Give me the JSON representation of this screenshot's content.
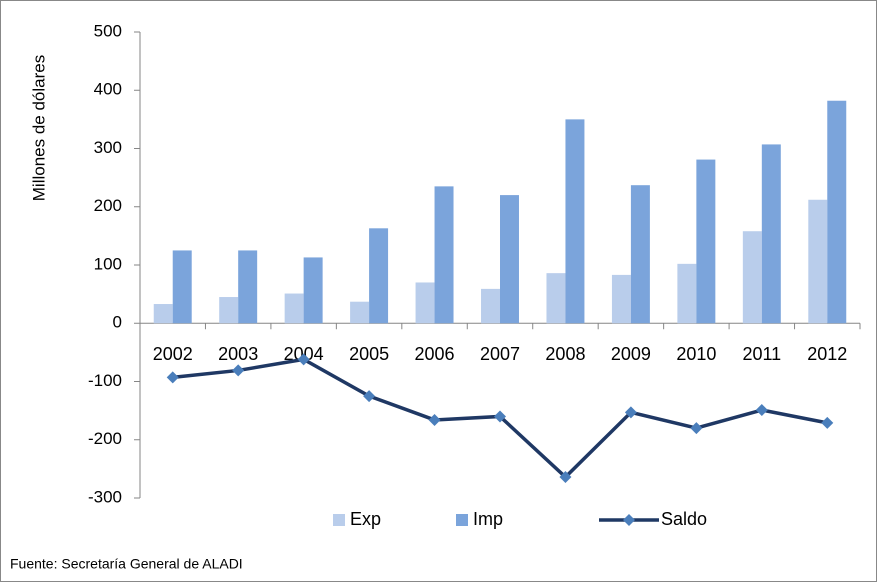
{
  "chart_data": {
    "type": "bar_line",
    "y_label": "Millones de dólares",
    "source": "Fuente: Secretaría General de ALADI",
    "categories": [
      "2002",
      "2003",
      "2004",
      "2005",
      "2006",
      "2007",
      "2008",
      "2009",
      "2010",
      "2011",
      "2012"
    ],
    "series": [
      {
        "name": "Exp",
        "type": "bar",
        "color": "#b9cdeb",
        "values": [
          33,
          45,
          51,
          37,
          70,
          59,
          86,
          83,
          102,
          158,
          212
        ]
      },
      {
        "name": "Imp",
        "type": "bar",
        "color": "#7ba4db",
        "values": [
          125,
          125,
          113,
          163,
          235,
          220,
          350,
          237,
          281,
          307,
          382
        ]
      },
      {
        "name": "Saldo",
        "type": "line",
        "color": "#1f3864",
        "marker_color": "#4a7ebb",
        "values": [
          -93,
          -81,
          -62,
          -125,
          -166,
          -160,
          -264,
          -153,
          -180,
          -149,
          -171
        ]
      }
    ],
    "ylim": [
      -300,
      500
    ],
    "yticks": [
      -300,
      -200,
      -100,
      0,
      100,
      200,
      300,
      400,
      500
    ],
    "grid": false,
    "legend": "bottom"
  }
}
